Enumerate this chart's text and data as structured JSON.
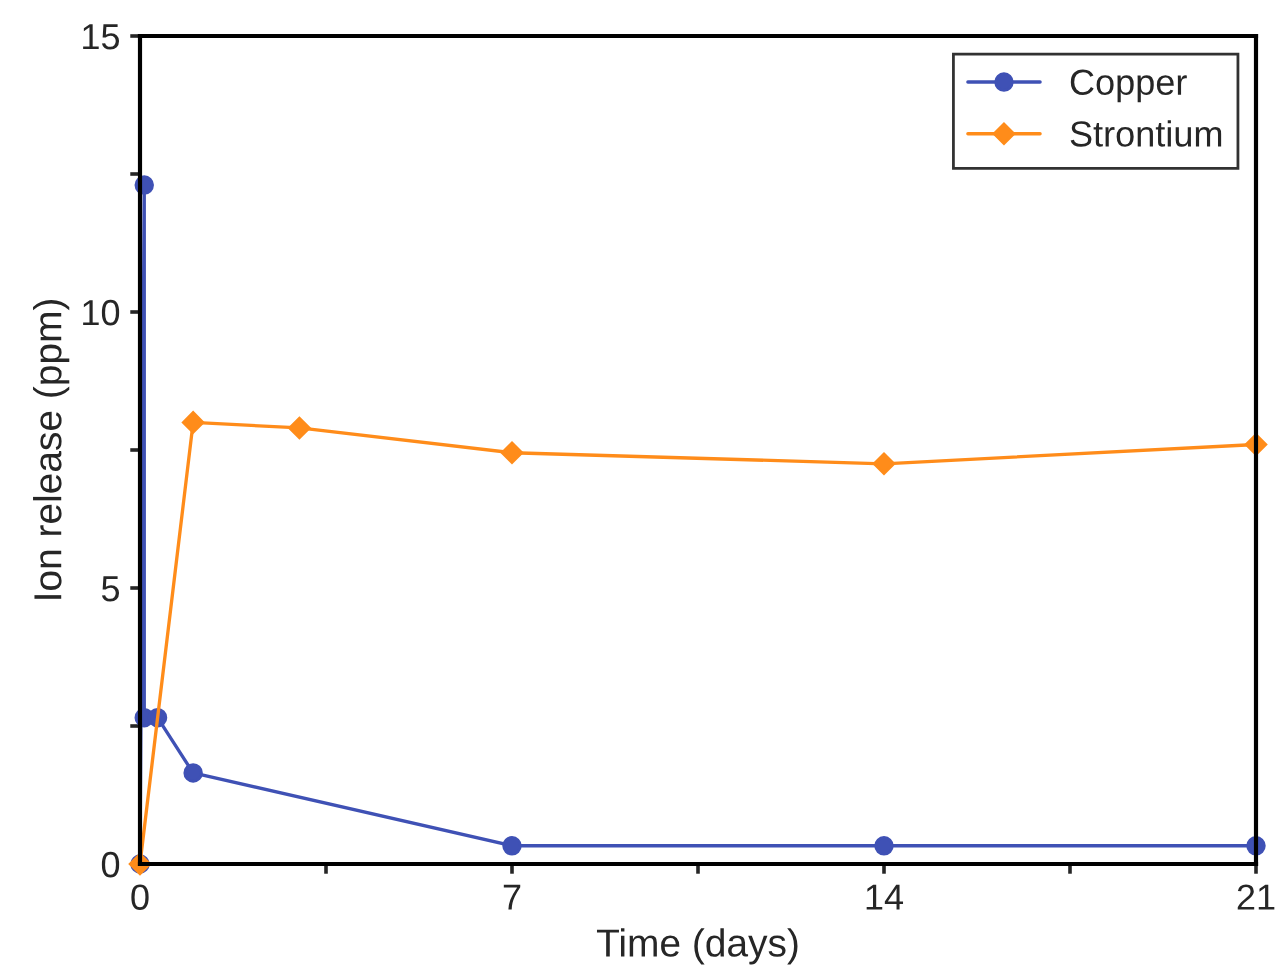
{
  "chart_data": {
    "type": "line",
    "xlabel": "Time (days)",
    "ylabel": "Ion release (ppm)",
    "xlim": [
      0,
      21
    ],
    "ylim": [
      0,
      15
    ],
    "xticks": [
      0,
      {
        "value": 3.5,
        "label": null
      },
      7,
      {
        "value": 10.5,
        "label": null
      },
      14,
      {
        "value": 17.5,
        "label": null
      },
      21
    ],
    "yticks": [
      0,
      {
        "value": 2.5,
        "label": null
      },
      5,
      {
        "value": 7.5,
        "label": null
      },
      10,
      {
        "value": 12.5,
        "label": null
      },
      15
    ],
    "grid": false,
    "legend": "top right",
    "series": [
      {
        "name": "Copper",
        "color": "#3f51b5",
        "marker": "circle",
        "x": [
          0,
          0.08,
          0.08,
          0.33,
          1,
          7,
          14,
          21
        ],
        "values": [
          0,
          12.3,
          2.65,
          2.65,
          1.65,
          0.33,
          0.33,
          0.33
        ]
      },
      {
        "name": "Strontium",
        "color": "#ff8c1a",
        "marker": "diamond",
        "x": [
          0,
          1,
          3,
          7,
          14,
          21
        ],
        "values": [
          0,
          8.0,
          7.9,
          7.45,
          7.25,
          7.6
        ]
      }
    ]
  }
}
